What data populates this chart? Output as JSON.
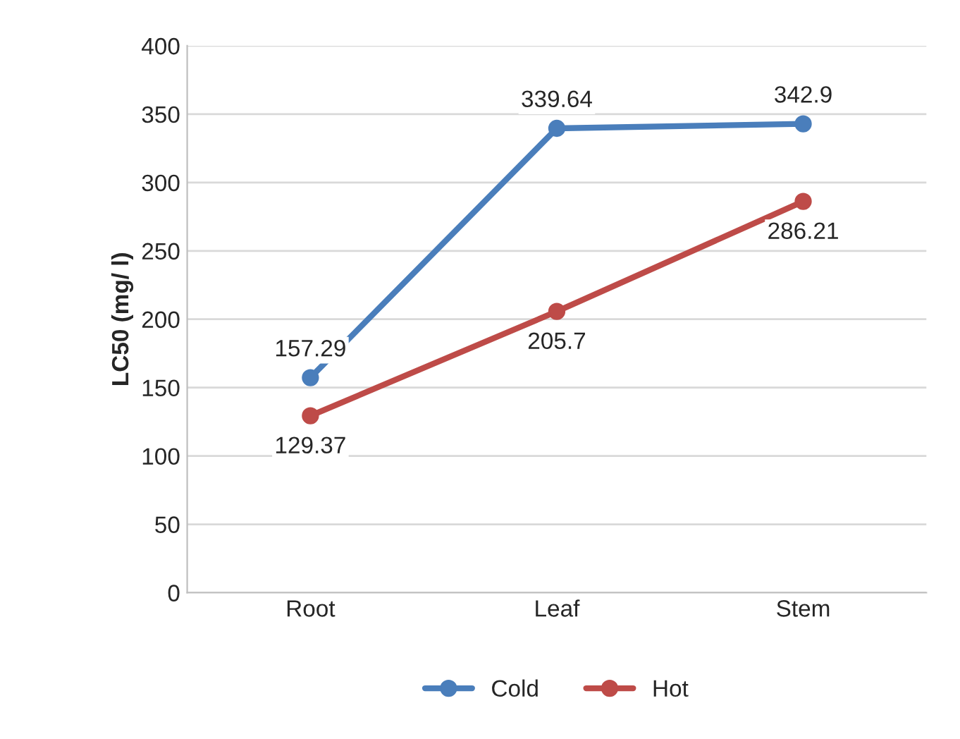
{
  "chart_data": {
    "type": "line",
    "ylabel": "LC50 (mg/ l)",
    "categories": [
      "Root",
      "Leaf",
      "Stem"
    ],
    "series": [
      {
        "name": "Cold",
        "color": "#4a7ebb",
        "values": [
          157.29,
          339.64,
          342.9
        ]
      },
      {
        "name": "Hot",
        "color": "#be4b48",
        "values": [
          129.37,
          205.7,
          286.21
        ]
      }
    ],
    "ylim": [
      0,
      400
    ],
    "yticks": [
      0,
      50,
      100,
      150,
      200,
      250,
      300,
      350,
      400
    ],
    "grid": "y",
    "legend": "bottom",
    "marker": "circle",
    "line_style": "solid",
    "data_labels": true
  }
}
